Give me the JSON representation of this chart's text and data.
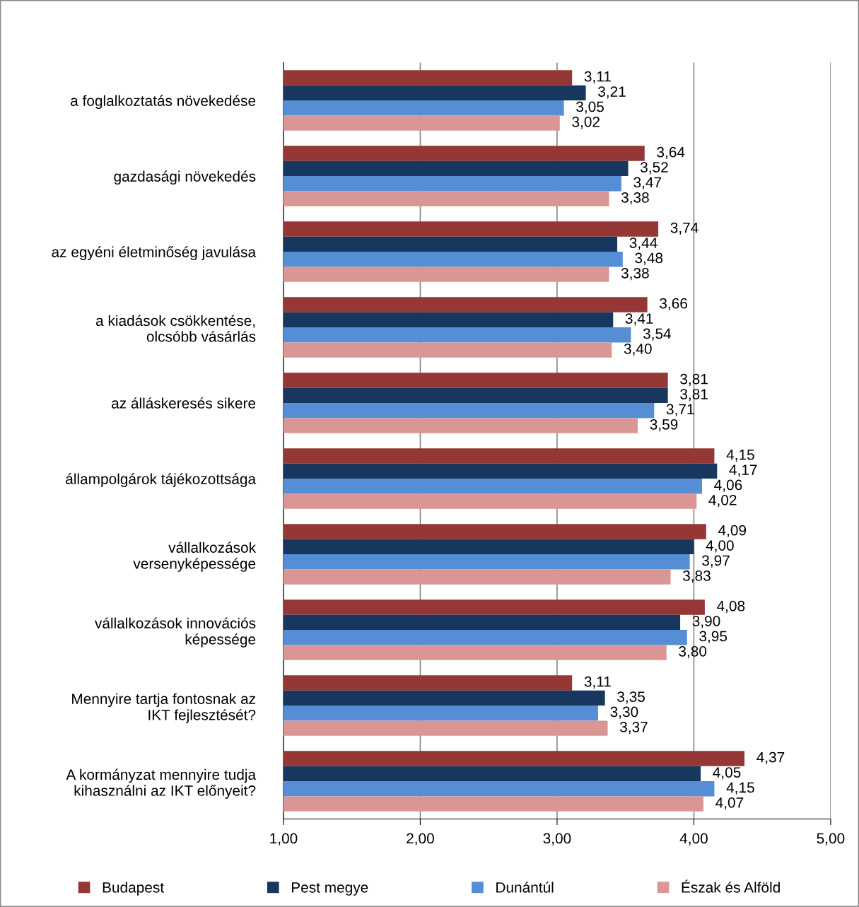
{
  "chart_data": {
    "type": "bar",
    "orientation": "horizontal",
    "categories": [
      "a foglalkoztatás növekedése",
      "gazdasági növekedés",
      "az egyéni életminőség javulása",
      "a kiadások csökkentése,\nolcsóbb vásárlás",
      "az álláskeresés sikere",
      "állampolgárok tájékozottsága",
      "vállalkozások\nversenyképessége",
      "vállalkozások innovációs\nképessége",
      "Mennyire tartja fontosnak az\nIKT fejlesztését?",
      "A kormányzat mennyire tudja\nkihasználni az IKT előnyeit?"
    ],
    "series": [
      {
        "name": "Budapest",
        "color": "#953735",
        "values": [
          3.11,
          3.64,
          3.74,
          3.66,
          3.81,
          4.15,
          4.09,
          4.08,
          3.11,
          4.37
        ],
        "value_labels": [
          "3,11",
          "3,64",
          "3,74",
          "3,66",
          "3,81",
          "4,15",
          "4,09",
          "4,08",
          "3,11",
          "4,37"
        ]
      },
      {
        "name": "Pest megye",
        "color": "#17375e",
        "values": [
          3.21,
          3.52,
          3.44,
          3.41,
          3.81,
          4.17,
          4.0,
          3.9,
          3.35,
          4.05
        ],
        "value_labels": [
          "3,21",
          "3,52",
          "3,44",
          "3,41",
          "3,81",
          "4,17",
          "4,00",
          "3,90",
          "3,35",
          "4,05"
        ]
      },
      {
        "name": "Dunántúl",
        "color": "#558ed5",
        "values": [
          3.05,
          3.47,
          3.48,
          3.54,
          3.71,
          4.06,
          3.97,
          3.95,
          3.3,
          4.15
        ],
        "value_labels": [
          "3,05",
          "3,47",
          "3,48",
          "3,54",
          "3,71",
          "4,06",
          "3,97",
          "3,95",
          "3,30",
          "4,15"
        ]
      },
      {
        "name": "Észak és Alföld",
        "color": "#d99694",
        "values": [
          3.02,
          3.38,
          3.38,
          3.4,
          3.59,
          4.02,
          3.83,
          3.8,
          3.37,
          4.07
        ],
        "value_labels": [
          "3,02",
          "3,38",
          "3,38",
          "3,40",
          "3,59",
          "4,02",
          "3,83",
          "3,80",
          "3,37",
          "4,07"
        ]
      }
    ],
    "xlim": [
      1,
      5
    ],
    "xticks": [
      {
        "value": 1,
        "label": "1,00"
      },
      {
        "value": 2,
        "label": "2,00"
      },
      {
        "value": 3,
        "label": "3,00"
      },
      {
        "value": 4,
        "label": "4,00"
      },
      {
        "value": 5,
        "label": "5,00"
      }
    ],
    "grid": "x",
    "legend": "bottom"
  }
}
